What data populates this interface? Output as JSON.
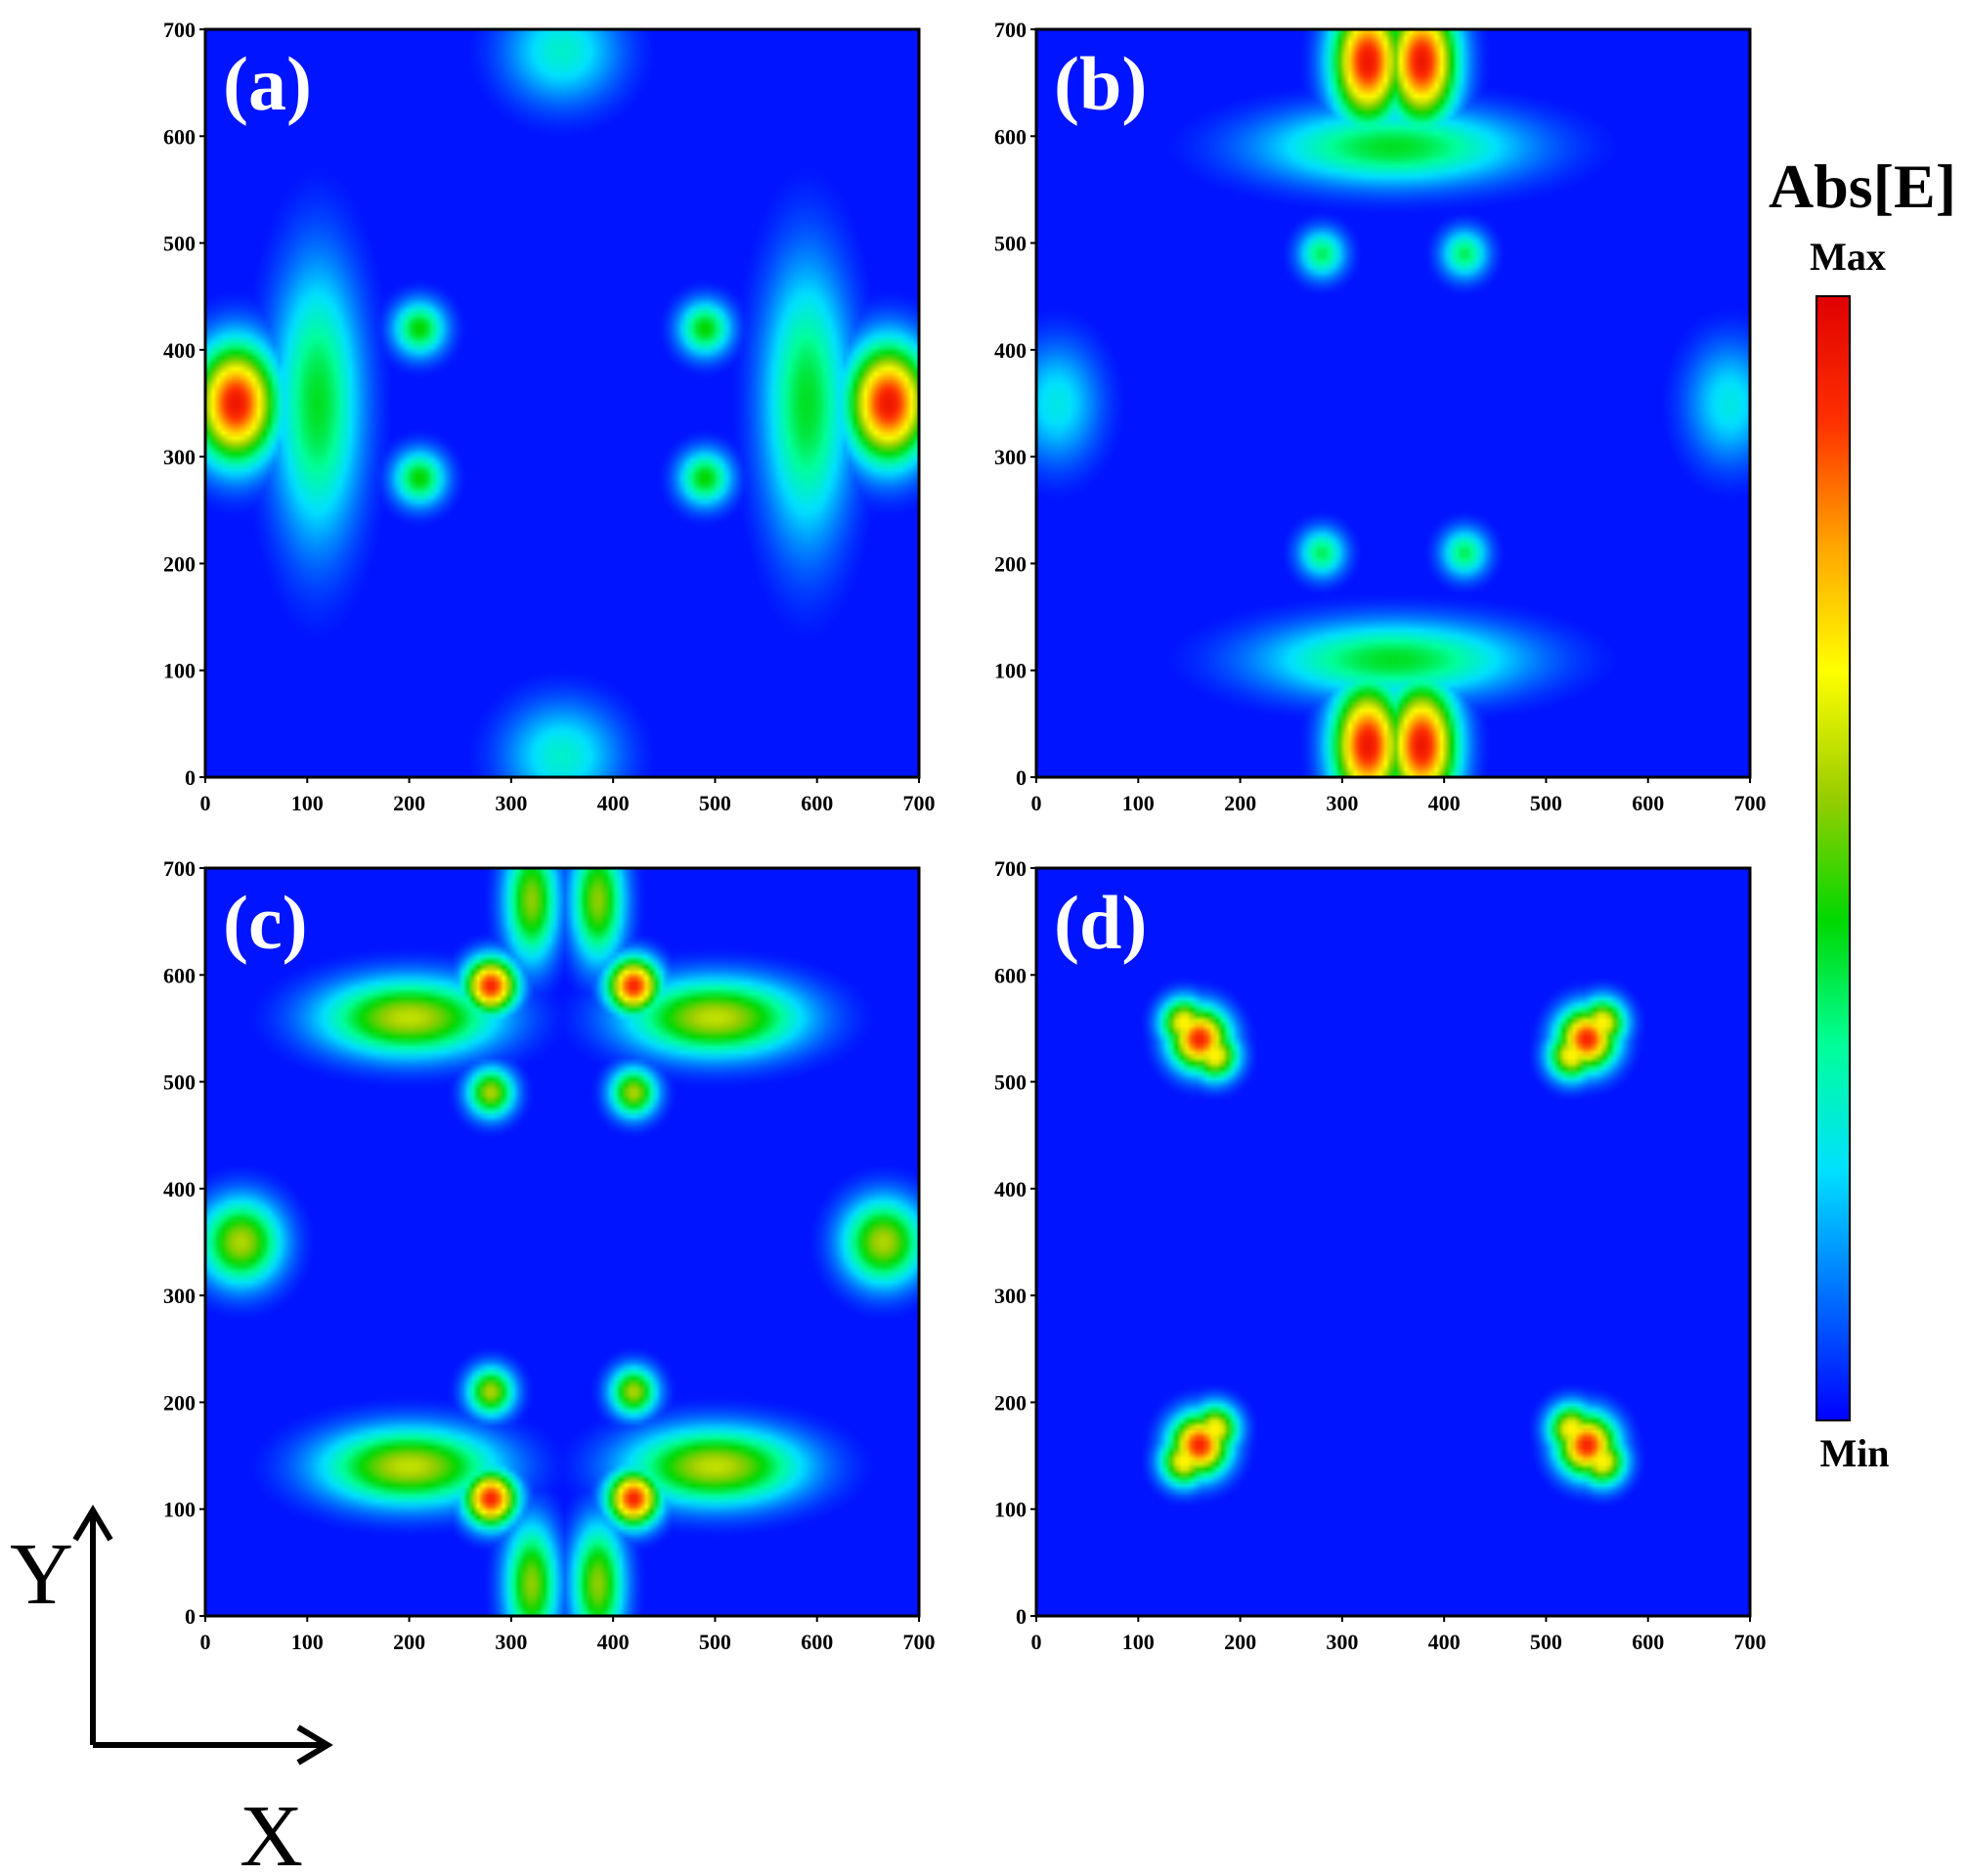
{
  "chart_data": {
    "type": "heatmap",
    "quantity": "Abs[E]",
    "colorbar": {
      "title": "Abs[E]",
      "max_label": "Max",
      "min_label": "Min",
      "colors": [
        "#0000ff",
        "#0070ff",
        "#00e0ff",
        "#00ff9a",
        "#00d800",
        "#9acd00",
        "#ffff00",
        "#ffa500",
        "#ff3000",
        "#e00000"
      ]
    },
    "xlim": [
      0,
      700
    ],
    "ylim": [
      0,
      700
    ],
    "xticks": [
      0,
      100,
      200,
      300,
      400,
      500,
      600,
      700
    ],
    "yticks": [
      0,
      100,
      200,
      300,
      400,
      500,
      600,
      700
    ],
    "axes_arrows": {
      "x": "X",
      "y": "Y"
    },
    "panels": [
      {
        "label": "(a)",
        "hotspots": [
          {
            "x": 30,
            "y": 350,
            "intensity": 0.95,
            "sx": 28,
            "sy": 38
          },
          {
            "x": 670,
            "y": 350,
            "intensity": 0.95,
            "sx": 28,
            "sy": 38
          },
          {
            "x": 110,
            "y": 350,
            "intensity": 0.42,
            "sx": 30,
            "sy": 90
          },
          {
            "x": 590,
            "y": 350,
            "intensity": 0.42,
            "sx": 30,
            "sy": 90
          },
          {
            "x": 210,
            "y": 420,
            "intensity": 0.45,
            "sx": 18,
            "sy": 18
          },
          {
            "x": 210,
            "y": 280,
            "intensity": 0.45,
            "sx": 18,
            "sy": 18
          },
          {
            "x": 490,
            "y": 420,
            "intensity": 0.45,
            "sx": 18,
            "sy": 18
          },
          {
            "x": 490,
            "y": 280,
            "intensity": 0.45,
            "sx": 18,
            "sy": 18
          },
          {
            "x": 350,
            "y": 20,
            "intensity": 0.28,
            "sx": 40,
            "sy": 35
          },
          {
            "x": 350,
            "y": 680,
            "intensity": 0.28,
            "sx": 40,
            "sy": 35
          }
        ]
      },
      {
        "label": "(b)",
        "hotspots": [
          {
            "x": 325,
            "y": 30,
            "intensity": 0.95,
            "sx": 24,
            "sy": 40
          },
          {
            "x": 378,
            "y": 30,
            "intensity": 0.95,
            "sx": 24,
            "sy": 40
          },
          {
            "x": 325,
            "y": 670,
            "intensity": 0.95,
            "sx": 24,
            "sy": 40
          },
          {
            "x": 378,
            "y": 670,
            "intensity": 0.95,
            "sx": 24,
            "sy": 40
          },
          {
            "x": 350,
            "y": 110,
            "intensity": 0.42,
            "sx": 90,
            "sy": 25
          },
          {
            "x": 350,
            "y": 590,
            "intensity": 0.42,
            "sx": 90,
            "sy": 25
          },
          {
            "x": 280,
            "y": 210,
            "intensity": 0.38,
            "sx": 16,
            "sy": 16
          },
          {
            "x": 420,
            "y": 210,
            "intensity": 0.38,
            "sx": 16,
            "sy": 16
          },
          {
            "x": 280,
            "y": 490,
            "intensity": 0.38,
            "sx": 16,
            "sy": 16
          },
          {
            "x": 420,
            "y": 490,
            "intensity": 0.38,
            "sx": 16,
            "sy": 16
          },
          {
            "x": 20,
            "y": 350,
            "intensity": 0.25,
            "sx": 30,
            "sy": 40
          },
          {
            "x": 680,
            "y": 350,
            "intensity": 0.25,
            "sx": 30,
            "sy": 40
          }
        ]
      },
      {
        "label": "(c)",
        "hotspots": [
          {
            "x": 280,
            "y": 110,
            "intensity": 0.92,
            "sx": 18,
            "sy": 18
          },
          {
            "x": 420,
            "y": 110,
            "intensity": 0.92,
            "sx": 18,
            "sy": 18
          },
          {
            "x": 280,
            "y": 590,
            "intensity": 0.92,
            "sx": 18,
            "sy": 18
          },
          {
            "x": 420,
            "y": 590,
            "intensity": 0.92,
            "sx": 18,
            "sy": 18
          },
          {
            "x": 200,
            "y": 140,
            "intensity": 0.6,
            "sx": 60,
            "sy": 25
          },
          {
            "x": 500,
            "y": 140,
            "intensity": 0.6,
            "sx": 60,
            "sy": 25
          },
          {
            "x": 200,
            "y": 560,
            "intensity": 0.6,
            "sx": 60,
            "sy": 25
          },
          {
            "x": 500,
            "y": 560,
            "intensity": 0.6,
            "sx": 60,
            "sy": 25
          },
          {
            "x": 280,
            "y": 210,
            "intensity": 0.58,
            "sx": 16,
            "sy": 16
          },
          {
            "x": 420,
            "y": 210,
            "intensity": 0.58,
            "sx": 16,
            "sy": 16
          },
          {
            "x": 280,
            "y": 490,
            "intensity": 0.58,
            "sx": 16,
            "sy": 16
          },
          {
            "x": 420,
            "y": 490,
            "intensity": 0.58,
            "sx": 16,
            "sy": 16
          },
          {
            "x": 320,
            "y": 30,
            "intensity": 0.55,
            "sx": 18,
            "sy": 40
          },
          {
            "x": 385,
            "y": 30,
            "intensity": 0.55,
            "sx": 18,
            "sy": 40
          },
          {
            "x": 320,
            "y": 670,
            "intensity": 0.55,
            "sx": 18,
            "sy": 40
          },
          {
            "x": 385,
            "y": 670,
            "intensity": 0.55,
            "sx": 18,
            "sy": 40
          },
          {
            "x": 35,
            "y": 350,
            "intensity": 0.58,
            "sx": 28,
            "sy": 28
          },
          {
            "x": 665,
            "y": 350,
            "intensity": 0.58,
            "sx": 28,
            "sy": 28
          }
        ]
      },
      {
        "label": "(d)",
        "hotspots": [
          {
            "x": 160,
            "y": 540,
            "intensity": 0.92,
            "sx": 20,
            "sy": 20
          },
          {
            "x": 540,
            "y": 540,
            "intensity": 0.92,
            "sx": 20,
            "sy": 20
          },
          {
            "x": 160,
            "y": 160,
            "intensity": 0.92,
            "sx": 20,
            "sy": 20
          },
          {
            "x": 540,
            "y": 160,
            "intensity": 0.92,
            "sx": 20,
            "sy": 20
          },
          {
            "x": 145,
            "y": 555,
            "intensity": 0.7,
            "sx": 16,
            "sy": 16
          },
          {
            "x": 175,
            "y": 525,
            "intensity": 0.7,
            "sx": 16,
            "sy": 16
          },
          {
            "x": 555,
            "y": 555,
            "intensity": 0.7,
            "sx": 16,
            "sy": 16
          },
          {
            "x": 525,
            "y": 525,
            "intensity": 0.7,
            "sx": 16,
            "sy": 16
          },
          {
            "x": 145,
            "y": 145,
            "intensity": 0.7,
            "sx": 16,
            "sy": 16
          },
          {
            "x": 175,
            "y": 175,
            "intensity": 0.7,
            "sx": 16,
            "sy": 16
          },
          {
            "x": 555,
            "y": 145,
            "intensity": 0.7,
            "sx": 16,
            "sy": 16
          },
          {
            "x": 525,
            "y": 175,
            "intensity": 0.7,
            "sx": 16,
            "sy": 16
          }
        ]
      }
    ]
  }
}
